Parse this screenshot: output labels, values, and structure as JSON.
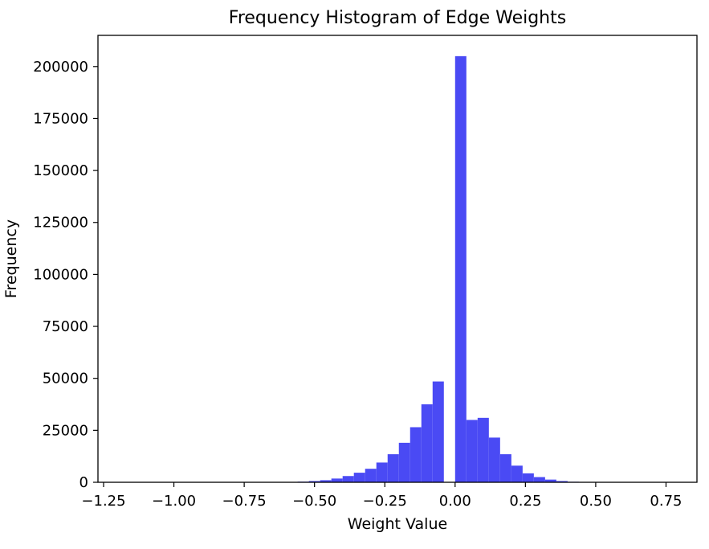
{
  "chart_data": {
    "type": "bar",
    "title": "Frequency Histogram of Edge Weights",
    "xlabel": "Weight Value",
    "ylabel": "Frequency",
    "xlim": [
      -1.27,
      0.86
    ],
    "ylim": [
      0,
      215000
    ],
    "x_ticks": [
      -1.25,
      -1.0,
      -0.75,
      -0.5,
      -0.25,
      0.0,
      0.25,
      0.5,
      0.75
    ],
    "x_tick_labels": [
      "−1.25",
      "−1.00",
      "−0.75",
      "−0.50",
      "−0.25",
      "0.00",
      "0.25",
      "0.50",
      "0.75"
    ],
    "y_ticks": [
      0,
      25000,
      50000,
      75000,
      100000,
      125000,
      150000,
      175000,
      200000
    ],
    "y_tick_labels": [
      "0",
      "25000",
      "50000",
      "75000",
      "100000",
      "125000",
      "150000",
      "175000",
      "200000"
    ],
    "bar_color": "#4a4af4",
    "grid": false,
    "bins": [
      {
        "x0": -0.56,
        "x1": -0.52,
        "value": 300
      },
      {
        "x0": -0.52,
        "x1": -0.48,
        "value": 600
      },
      {
        "x0": -0.48,
        "x1": -0.44,
        "value": 1000
      },
      {
        "x0": -0.44,
        "x1": -0.4,
        "value": 1800
      },
      {
        "x0": -0.4,
        "x1": -0.36,
        "value": 3000
      },
      {
        "x0": -0.36,
        "x1": -0.32,
        "value": 4600
      },
      {
        "x0": -0.32,
        "x1": -0.28,
        "value": 6500
      },
      {
        "x0": -0.28,
        "x1": -0.24,
        "value": 9500
      },
      {
        "x0": -0.24,
        "x1": -0.2,
        "value": 13500
      },
      {
        "x0": -0.2,
        "x1": -0.16,
        "value": 19000
      },
      {
        "x0": -0.16,
        "x1": -0.12,
        "value": 26500
      },
      {
        "x0": -0.12,
        "x1": -0.08,
        "value": 37500
      },
      {
        "x0": -0.08,
        "x1": -0.04,
        "value": 48500
      },
      {
        "x0": -0.04,
        "x1": 0.0,
        "value": 0
      },
      {
        "x0": 0.0,
        "x1": 0.04,
        "value": 205000
      },
      {
        "x0": 0.04,
        "x1": 0.08,
        "value": 30000
      },
      {
        "x0": 0.08,
        "x1": 0.12,
        "value": 31000
      },
      {
        "x0": 0.12,
        "x1": 0.16,
        "value": 21500
      },
      {
        "x0": 0.16,
        "x1": 0.2,
        "value": 13500
      },
      {
        "x0": 0.2,
        "x1": 0.24,
        "value": 8000
      },
      {
        "x0": 0.24,
        "x1": 0.28,
        "value": 4300
      },
      {
        "x0": 0.28,
        "x1": 0.32,
        "value": 2500
      },
      {
        "x0": 0.32,
        "x1": 0.36,
        "value": 1300
      },
      {
        "x0": 0.36,
        "x1": 0.4,
        "value": 600
      },
      {
        "x0": 0.4,
        "x1": 0.44,
        "value": 250
      }
    ]
  }
}
